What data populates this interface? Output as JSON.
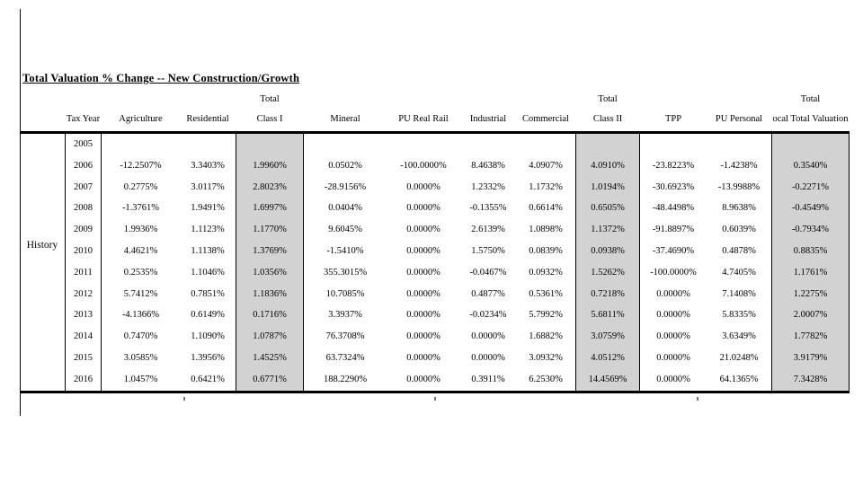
{
  "page": {
    "title": "Total Valuation % Change -- New Construction/Growth",
    "row_group_label": "History"
  },
  "chart_data": {
    "type": "table",
    "title": "Total Valuation % Change -- New Construction/Growth",
    "row_group_label": "History",
    "header_top": [
      "",
      "",
      "",
      "",
      "Total",
      "",
      "",
      "",
      "",
      "Total",
      "",
      "",
      "Total"
    ],
    "header_main": [
      "",
      "Tax Year",
      "Agriculture",
      "Residential",
      "Class I",
      "Mineral",
      "PU Real Rail",
      "Industrial",
      "Commercial",
      "Class II",
      "TPP",
      "PU Personal",
      "ocal Total Valuation"
    ],
    "shaded_columns": [
      "Class I",
      "Class II",
      "Total Valuation"
    ],
    "shaded_color": "#d2d2d2",
    "rows": [
      [
        "2005",
        "",
        "",
        "",
        "",
        "",
        "",
        "",
        "",
        "",
        "",
        ""
      ],
      [
        "2006",
        "-12.2507%",
        "3.3403%",
        "1.9960%",
        "0.0502%",
        "-100.0000%",
        "8.4638%",
        "4.0907%",
        "4.0910%",
        "-23.8223%",
        "-1.4238%",
        "0.3540%"
      ],
      [
        "2007",
        "0.2775%",
        "3.0117%",
        "2.8023%",
        "-28.9156%",
        "0.0000%",
        "1.2332%",
        "1.1732%",
        "1.0194%",
        "-30.6923%",
        "-13.9988%",
        "-0.2271%"
      ],
      [
        "2008",
        "-1.3761%",
        "1.9491%",
        "1.6997%",
        "0.0404%",
        "0.0000%",
        "-0.1355%",
        "0.6614%",
        "0.6505%",
        "-48.4498%",
        "8.9638%",
        "-0.4549%"
      ],
      [
        "2009",
        "1.9936%",
        "1.1123%",
        "1.1770%",
        "9.6045%",
        "0.0000%",
        "2.6139%",
        "1.0898%",
        "1.1372%",
        "-91.8897%",
        "0.6039%",
        "-0.7934%"
      ],
      [
        "2010",
        "4.4621%",
        "1.1138%",
        "1.3769%",
        "-1.5410%",
        "0.0000%",
        "1.5750%",
        "0.0839%",
        "0.0938%",
        "-37.4690%",
        "0.4878%",
        "0.8835%"
      ],
      [
        "2011",
        "0.2535%",
        "1.1046%",
        "1.0356%",
        "355.3015%",
        "0.0000%",
        "-0.0467%",
        "0.0932%",
        "1.5262%",
        "-100.0000%",
        "4.7405%",
        "1.1761%"
      ],
      [
        "2012",
        "5.7412%",
        "0.7851%",
        "1.1836%",
        "10.7085%",
        "0.0000%",
        "0.4877%",
        "0.5361%",
        "0.7218%",
        "0.0000%",
        "7.1408%",
        "1.2275%"
      ],
      [
        "2013",
        "-4.1366%",
        "0.6149%",
        "0.1716%",
        "3.3937%",
        "0.0000%",
        "-0.0234%",
        "5.7992%",
        "5.6811%",
        "0.0000%",
        "5.8335%",
        "2.0007%"
      ],
      [
        "2014",
        "0.7470%",
        "1.1090%",
        "1.0787%",
        "76.3708%",
        "0.0000%",
        "0.0000%",
        "1.6882%",
        "3.0759%",
        "0.0000%",
        "3.6349%",
        "1.7782%"
      ],
      [
        "2015",
        "3.0585%",
        "1.3956%",
        "1.4525%",
        "63.7324%",
        "0.0000%",
        "0.0000%",
        "3.0932%",
        "4.0512%",
        "0.0000%",
        "21.0248%",
        "3.9179%"
      ],
      [
        "2016",
        "1.0457%",
        "0.6421%",
        "0.6771%",
        "188.2290%",
        "0.0000%",
        "0.3911%",
        "6.2530%",
        "14.4569%",
        "0.0000%",
        "64.1365%",
        "7.3428%"
      ]
    ]
  }
}
